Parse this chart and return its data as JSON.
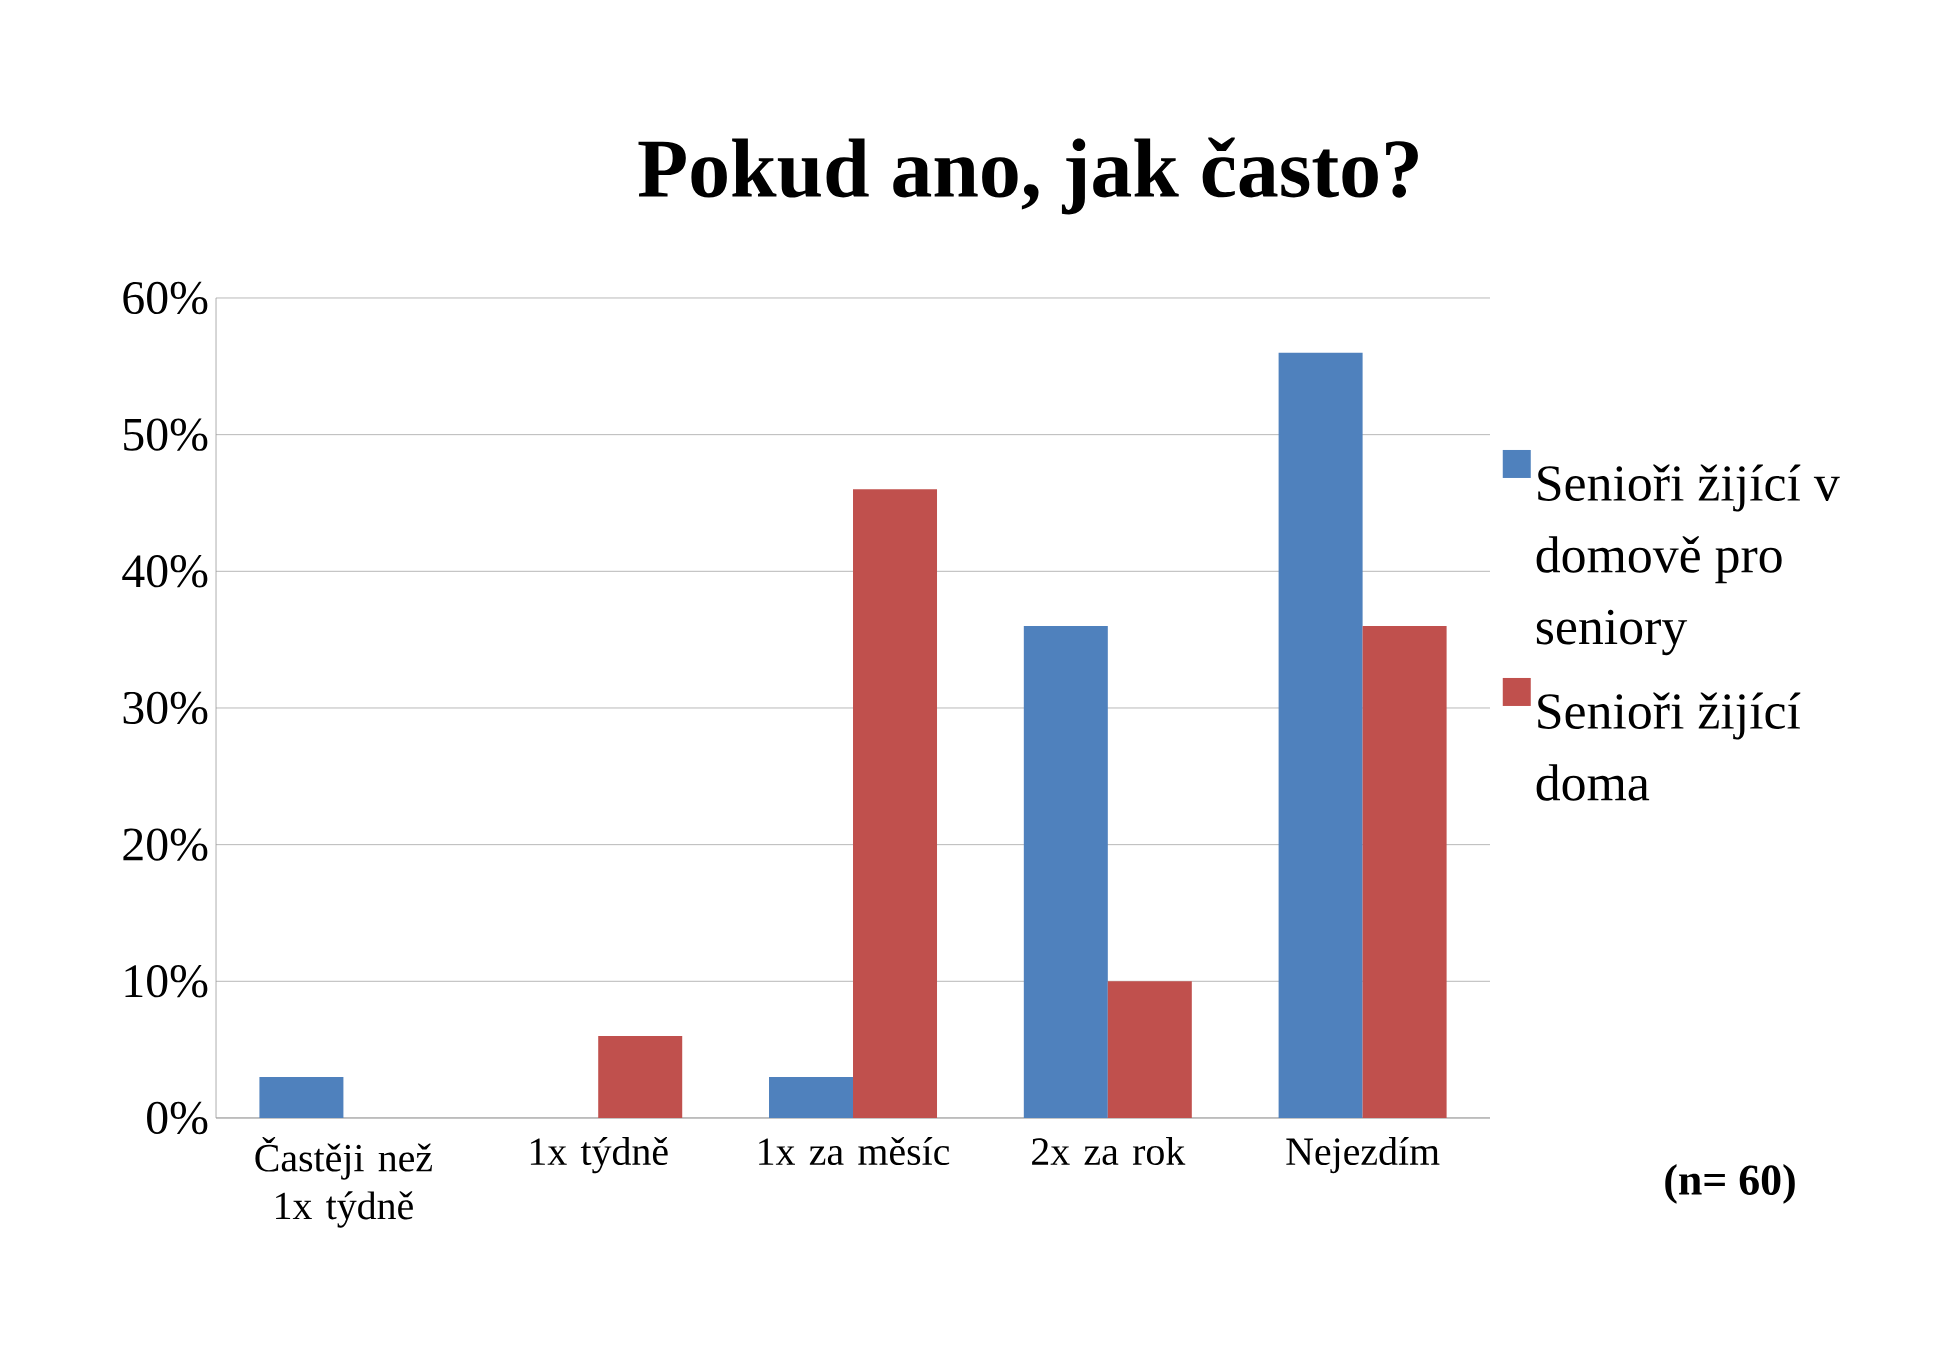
{
  "chart_data": {
    "type": "bar",
    "title": "Pokud ano, jak často?",
    "categories": [
      "Častěji než 1x týdně",
      "1x týdně",
      "1x za měsíc",
      "2x za rok",
      "Nejezdím"
    ],
    "series": [
      {
        "name": "Senioři žijící v domově pro seniory",
        "color": "#4f81bd",
        "values": [
          3,
          0,
          3,
          36,
          56
        ]
      },
      {
        "name": "Senioři žijící doma",
        "color": "#c0504d",
        "values": [
          0,
          6,
          46,
          10,
          36
        ]
      }
    ],
    "ylim": [
      0,
      60
    ],
    "yticks": [
      {
        "value": 0,
        "label": "0%"
      },
      {
        "value": 10,
        "label": "10%"
      },
      {
        "value": 20,
        "label": "20%"
      },
      {
        "value": 30,
        "label": "30%"
      },
      {
        "value": 40,
        "label": "40%"
      },
      {
        "value": 50,
        "label": "50%"
      },
      {
        "value": 60,
        "label": "60%"
      }
    ],
    "grid": "y",
    "legend": "right",
    "annotations": [
      "(n= 60)"
    ]
  }
}
